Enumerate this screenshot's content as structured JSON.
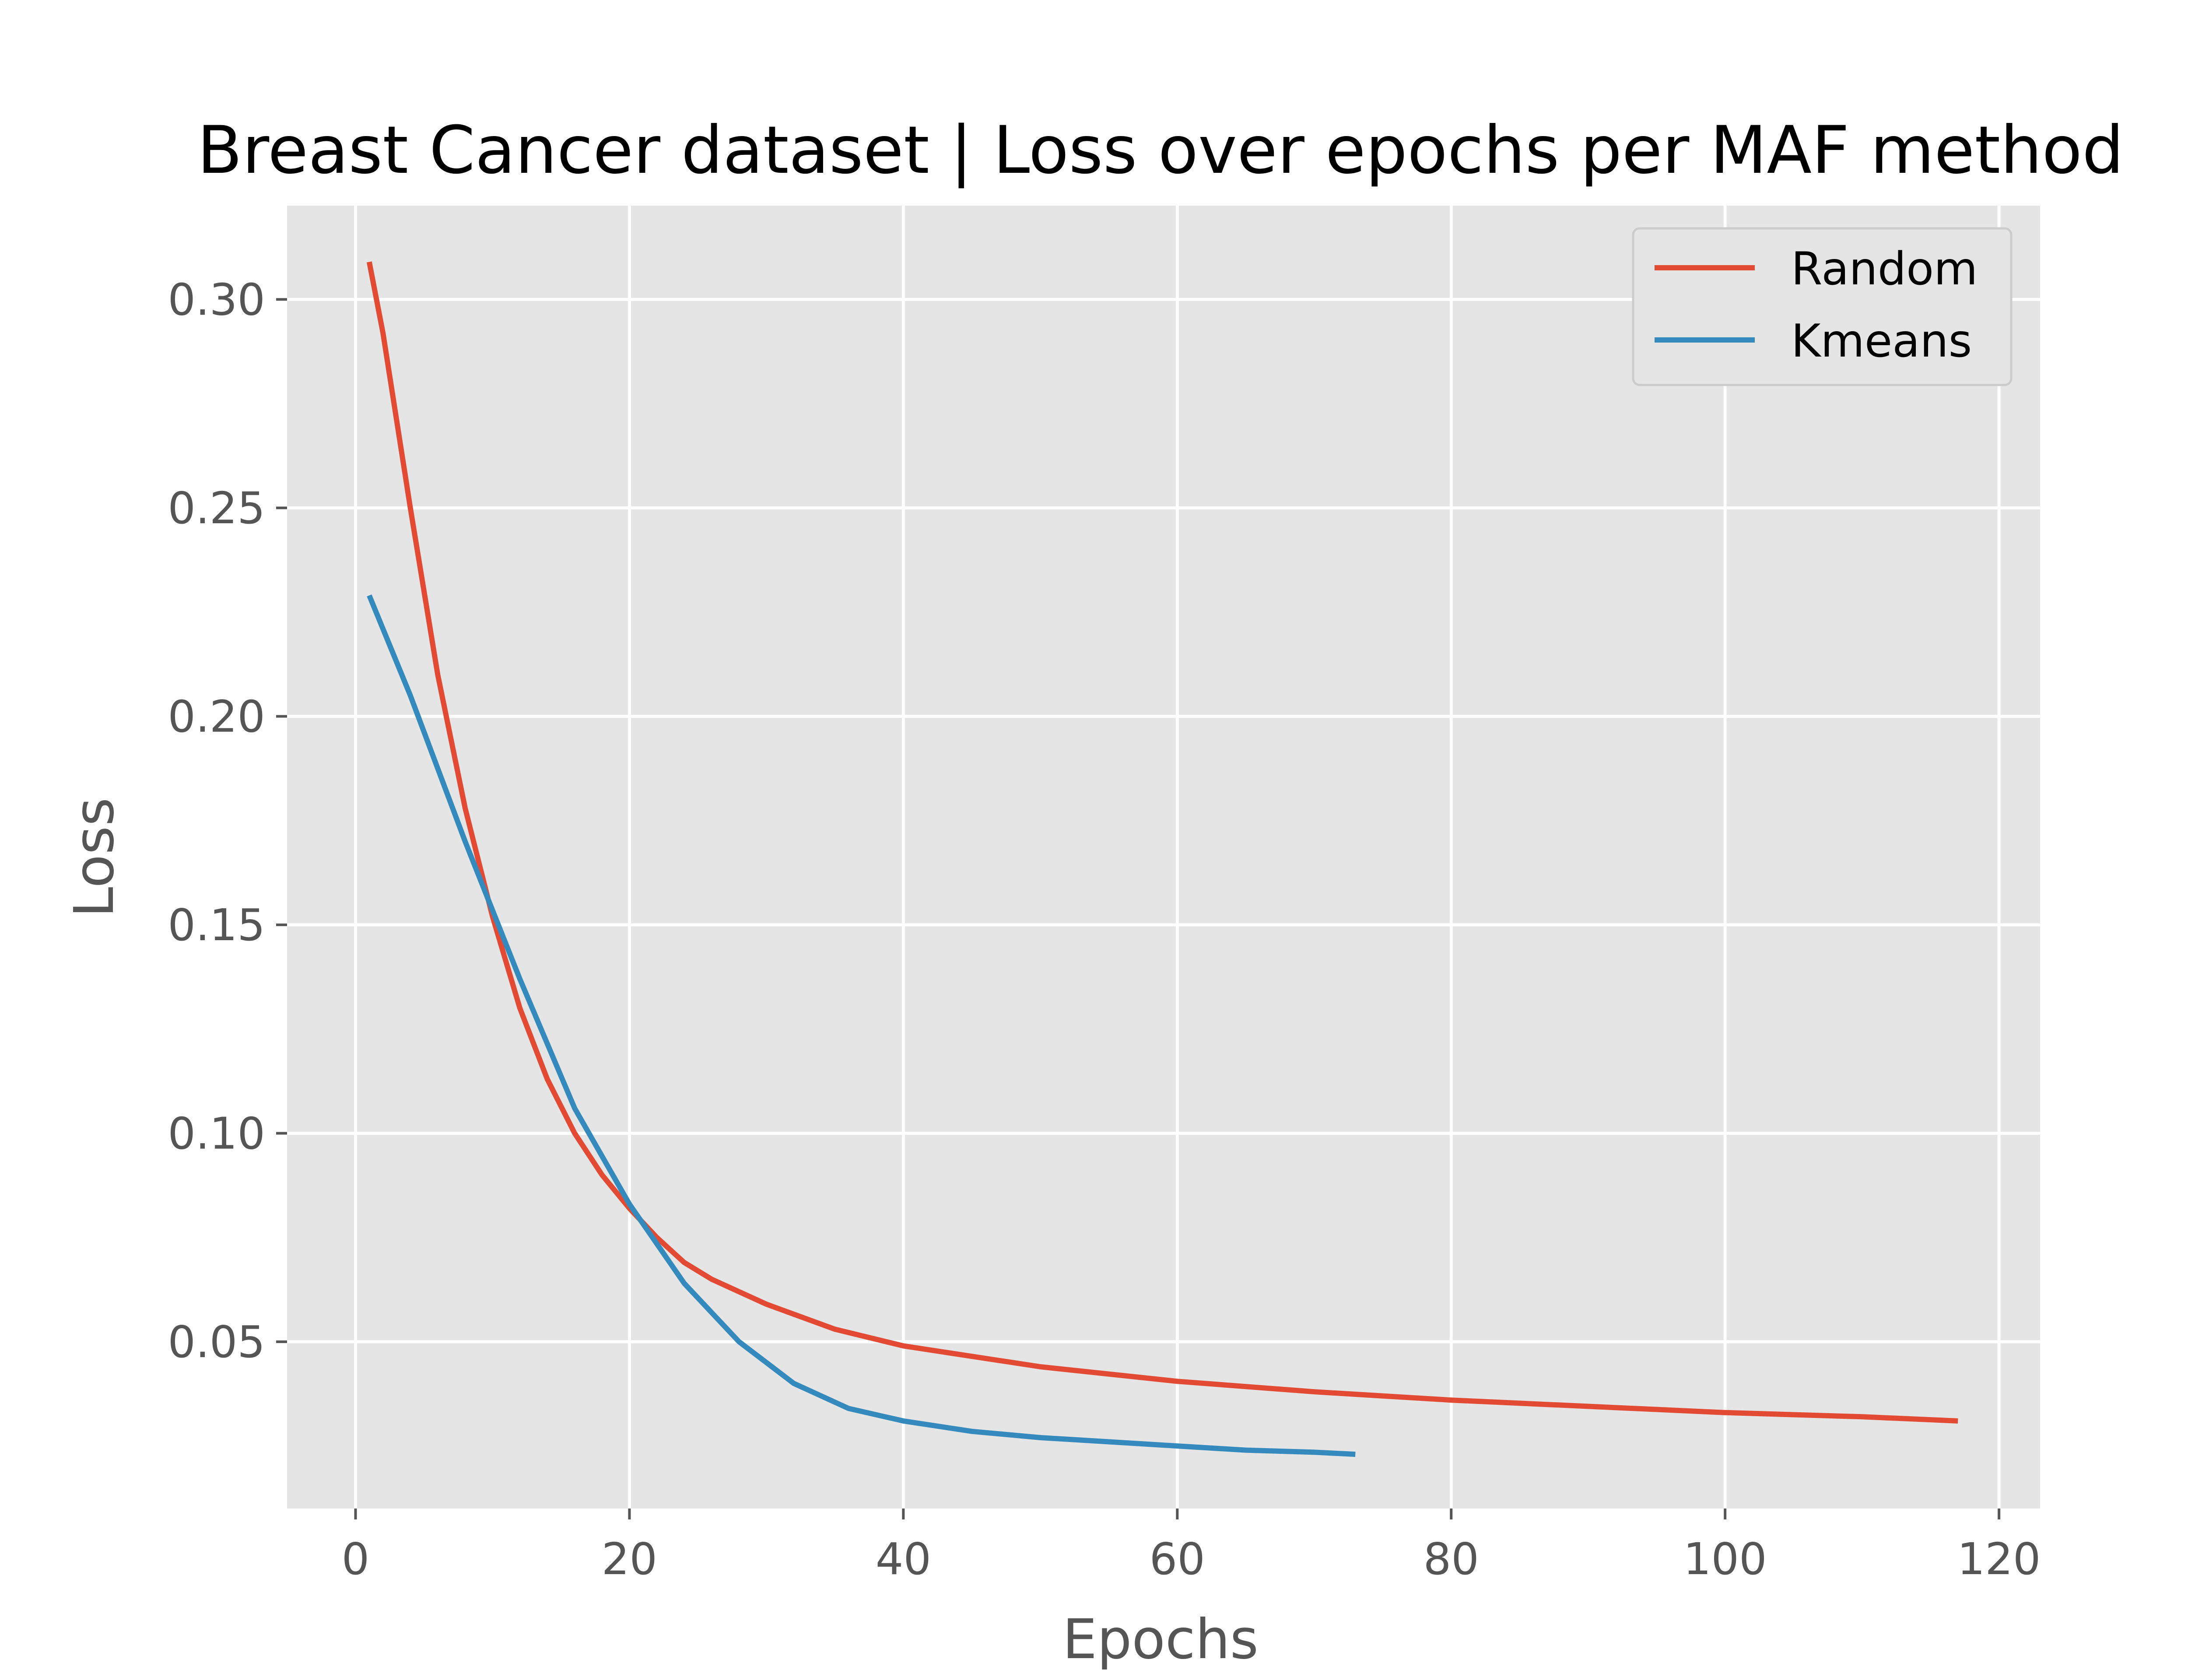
{
  "chart_data": {
    "type": "line",
    "title": "Breast Cancer dataset | Loss over epochs per MAF method",
    "xlabel": "Epochs",
    "ylabel": "Loss",
    "xlim": [
      -5,
      123
    ],
    "ylim": [
      0.01,
      0.3225
    ],
    "xticks": [
      0,
      20,
      40,
      60,
      80,
      100,
      120
    ],
    "yticks": [
      0.05,
      0.1,
      0.15,
      0.2,
      0.25,
      0.3
    ],
    "xtick_labels": [
      "0",
      "20",
      "40",
      "60",
      "80",
      "100",
      "120"
    ],
    "ytick_labels": [
      "0.05",
      "0.10",
      "0.15",
      "0.20",
      "0.25",
      "0.30"
    ],
    "grid": true,
    "legend_position": "top-right",
    "series": [
      {
        "name": "Random",
        "color": "#E24A33",
        "x": [
          1,
          2,
          4,
          6,
          8,
          10,
          12,
          14,
          16,
          18,
          20,
          22,
          24,
          26,
          28,
          30,
          35,
          40,
          45,
          50,
          60,
          70,
          80,
          90,
          100,
          110,
          117
        ],
        "y": [
          0.309,
          0.292,
          0.25,
          0.21,
          0.178,
          0.152,
          0.13,
          0.113,
          0.1,
          0.09,
          0.082,
          0.075,
          0.069,
          0.065,
          0.062,
          0.059,
          0.053,
          0.049,
          0.0465,
          0.044,
          0.0405,
          0.038,
          0.036,
          0.0345,
          0.033,
          0.032,
          0.031
        ]
      },
      {
        "name": "Kmeans",
        "color": "#348ABD",
        "x": [
          1,
          4,
          8,
          12,
          16,
          20,
          24,
          28,
          32,
          36,
          40,
          45,
          50,
          55,
          60,
          65,
          70,
          73
        ],
        "y": [
          0.229,
          0.205,
          0.17,
          0.137,
          0.106,
          0.083,
          0.064,
          0.05,
          0.04,
          0.034,
          0.031,
          0.0285,
          0.027,
          0.026,
          0.025,
          0.024,
          0.0235,
          0.023
        ]
      }
    ]
  }
}
